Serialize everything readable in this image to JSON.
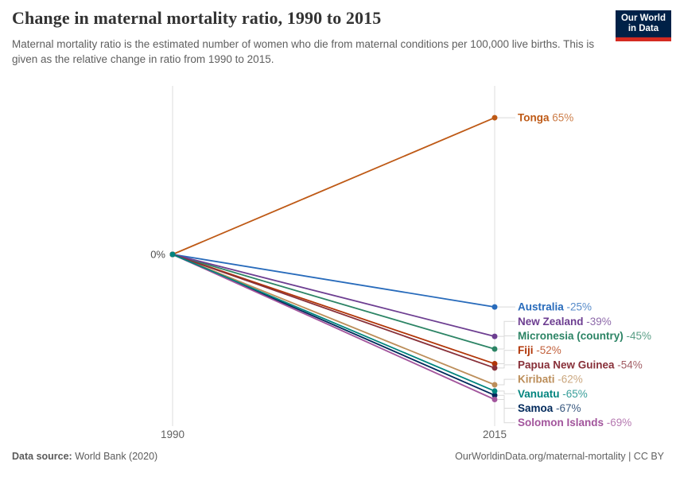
{
  "header": {
    "title": "Change in maternal mortality ratio, 1990 to 2015",
    "subtitle": "Maternal mortality ratio is the estimated number of women who die from maternal conditions per 100,000 live births. This is given as the relative change in ratio from 1990 to 2015.",
    "logo": {
      "line1": "Our World",
      "line2": "in Data",
      "bg_color": "#002147",
      "accent_color": "#d42b21"
    }
  },
  "chart_data": {
    "type": "line",
    "subtype": "slope",
    "title": "Change in maternal mortality ratio, 1990 to 2015",
    "x": [
      1990,
      2015
    ],
    "x_labels": [
      "1990",
      "2015"
    ],
    "baseline_label": "0%",
    "ylabel": "",
    "xlabel": "",
    "grid": false,
    "legend_position": "right-inline-labels",
    "axis_color": "#dddddd",
    "connector_color": "#d9d9d9",
    "series": [
      {
        "name": "Tonga",
        "values": [
          0,
          65
        ],
        "value_label": "65%",
        "color": "#be5915"
      },
      {
        "name": "Australia",
        "values": [
          0,
          -25
        ],
        "value_label": "-25%",
        "color": "#286bbb"
      },
      {
        "name": "New Zealand",
        "values": [
          0,
          -39
        ],
        "value_label": "-39%",
        "color": "#6d3e91"
      },
      {
        "name": "Micronesia (country)",
        "values": [
          0,
          -45
        ],
        "value_label": "-45%",
        "color": "#2c8465"
      },
      {
        "name": "Fiji",
        "values": [
          0,
          -52
        ],
        "value_label": "-52%",
        "color": "#b13507"
      },
      {
        "name": "Papua New Guinea",
        "values": [
          0,
          -54
        ],
        "value_label": "-54%",
        "color": "#883039"
      },
      {
        "name": "Kiribati",
        "values": [
          0,
          -62
        ],
        "value_label": "-62%",
        "color": "#bc8e5a"
      },
      {
        "name": "Vanuatu",
        "values": [
          0,
          -65
        ],
        "value_label": "-65%",
        "color": "#00847e"
      },
      {
        "name": "Samoa",
        "values": [
          0,
          -67
        ],
        "value_label": "-67%",
        "color": "#00295b"
      },
      {
        "name": "Solomon Islands",
        "values": [
          0,
          -69
        ],
        "value_label": "-69%",
        "color": "#a2559c"
      }
    ]
  },
  "footer": {
    "datasource_label": "Data source:",
    "datasource_value": " World Bank (2020)",
    "link": "OurWorldinData.org/maternal-mortality | CC BY"
  }
}
